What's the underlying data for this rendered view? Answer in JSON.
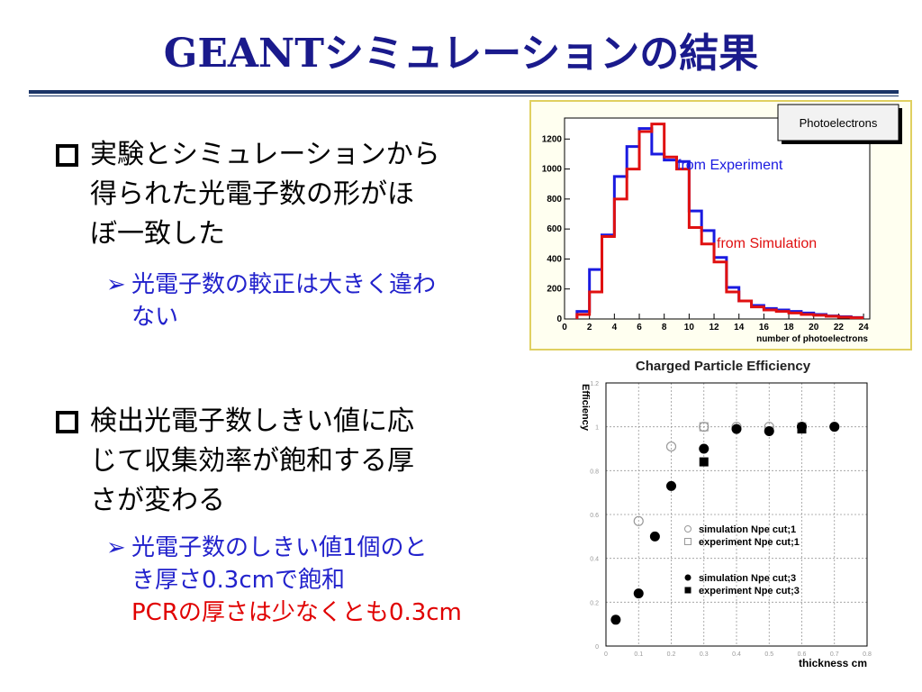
{
  "slide": {
    "title": "GEANTシミュレーションの結果",
    "bullet1": {
      "lines": [
        "実験とシミュレーションから",
        "得られた光電子数の形がほ",
        "ぼ一致した"
      ],
      "sub_lines": [
        "光電子数の較正は大きく違わ",
        "ない"
      ]
    },
    "bullet2": {
      "lines": [
        "検出光電子数しきい値に応",
        "じて収集効率が飽和する厚",
        "さが変わる"
      ],
      "sub_line1": "光電子数のしきい値1個のと",
      "sub_line2": "き厚さ0.3cmで飽和",
      "sub_line3": "PCRの厚さは少なくとも0.3cm"
    }
  },
  "colors": {
    "title": "#1a1a8c",
    "sub": "#2222cc",
    "red": "#e00000",
    "experiment": "#1a1ae0",
    "simulation": "#e01010"
  },
  "chart_data": [
    {
      "type": "line",
      "title": "Photoelectrons",
      "xlabel": "number of photoelectrons",
      "ylabel": "",
      "xlim": [
        0,
        24.5
      ],
      "ylim": [
        0,
        1340
      ],
      "xticks": [
        0,
        2,
        4,
        6,
        8,
        10,
        12,
        14,
        16,
        18,
        20,
        22,
        24
      ],
      "yticks": [
        0,
        200,
        400,
        600,
        800,
        1000,
        1200
      ],
      "bin_edges": [
        1,
        2,
        3,
        4,
        5,
        6,
        7,
        8,
        9,
        10,
        11,
        12,
        13,
        14,
        15,
        16,
        17,
        18,
        19,
        20,
        21,
        22,
        23,
        24
      ],
      "series": [
        {
          "name": "from Experiment",
          "values": [
            50,
            330,
            560,
            950,
            1150,
            1270,
            1100,
            1060,
            1050,
            720,
            590,
            410,
            210,
            120,
            90,
            70,
            60,
            50,
            40,
            30,
            20,
            15,
            10
          ]
        },
        {
          "name": "from Simulation",
          "values": [
            30,
            180,
            550,
            800,
            1000,
            1250,
            1300,
            1080,
            1000,
            610,
            500,
            380,
            180,
            120,
            80,
            60,
            50,
            40,
            30,
            25,
            18,
            12,
            8
          ]
        }
      ],
      "legend_placement": "top-right"
    },
    {
      "type": "scatter",
      "title": "Charged Particle Efficiency",
      "xlabel": "thickness   cm",
      "ylabel": "Efficiency",
      "xlim": [
        0,
        0.8
      ],
      "ylim": [
        0,
        1.2
      ],
      "xticks": [
        "0",
        "0.1",
        "0.2",
        "0.3",
        "0.4",
        "0.5",
        "0.6",
        "0.7",
        "0.8"
      ],
      "yticks": [
        "0",
        "0.2",
        "0.4",
        "0.6",
        "0.8",
        "1",
        "1.2"
      ],
      "grid": true,
      "series": [
        {
          "name": "simulation Npe cut;1",
          "marker": "open-circle",
          "points": [
            [
              0.1,
              0.57
            ],
            [
              0.2,
              0.91
            ],
            [
              0.3,
              1.0
            ],
            [
              0.4,
              1.0
            ],
            [
              0.5,
              1.0
            ],
            [
              0.6,
              1.0
            ],
            [
              0.7,
              1.0
            ]
          ]
        },
        {
          "name": "experiment Npe cut;1",
          "marker": "open-square",
          "points": [
            [
              0.3,
              1.0
            ],
            [
              0.6,
              1.0
            ]
          ]
        },
        {
          "name": "simulation Npe cut;3",
          "marker": "filled-circle",
          "points": [
            [
              0.03,
              0.12
            ],
            [
              0.1,
              0.24
            ],
            [
              0.15,
              0.5
            ],
            [
              0.2,
              0.73
            ],
            [
              0.3,
              0.9
            ],
            [
              0.4,
              0.99
            ],
            [
              0.5,
              0.98
            ],
            [
              0.6,
              1.0
            ],
            [
              0.7,
              1.0
            ]
          ]
        },
        {
          "name": "experiment Npe cut;3",
          "marker": "filled-square",
          "points": [
            [
              0.3,
              0.84
            ],
            [
              0.6,
              0.99
            ]
          ]
        }
      ],
      "legend_placement": "center-right"
    }
  ]
}
